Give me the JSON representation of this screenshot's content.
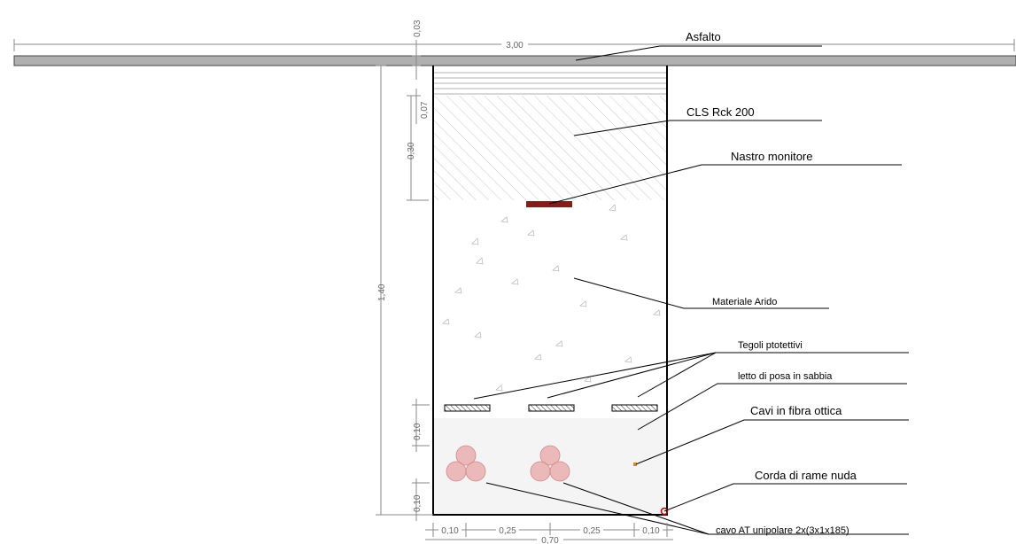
{
  "labels": {
    "asfalto": "Asfalto",
    "cls": "CLS Rck 200",
    "nastro": "Nastro monitore",
    "materiale": "Materiale Arido",
    "tegoli": "Tegoli ptotettivi",
    "letto": "letto di posa in sabbia",
    "fibra": "Cavi in fibra ottica",
    "corda": "Corda di rame nuda",
    "cavo": "cavo AT unipolare 2x(3x1x185)"
  },
  "dimensions": {
    "total_width": "3,00",
    "asphalt": "0,03",
    "layer_07": "0,07",
    "layer_30": "0,30",
    "depth": "1,40",
    "sand_upper": "0,10",
    "sand_lower": "0,10",
    "bottom_a": "0,10",
    "bottom_b": "0,25",
    "bottom_c": "0,25",
    "bottom_d": "0,10",
    "trench_width": "0,70"
  },
  "colors": {
    "tape": "#8b1a1a",
    "cable": "#e8a6a6",
    "fiber": "#e08a00",
    "copper": "#c00000",
    "asphalt_fill": "#b0b0b0"
  }
}
